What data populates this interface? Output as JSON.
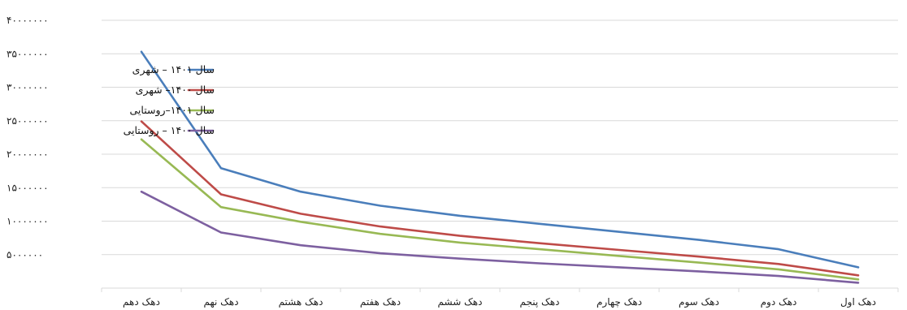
{
  "chart_data": {
    "type": "line",
    "categories": [
      "دهک اول",
      "دهک دوم",
      "دهک سوم",
      "دهک چهارم",
      "دهک پنجم",
      "دهک ششم",
      "دهک هفتم",
      "دهک هشتم",
      "دهک نهم",
      "دهک دهم"
    ],
    "series": [
      {
        "name": "سال ۱۴۰۱ – شهری",
        "color": "#4a7ebb",
        "values": [
          3100000,
          5800000,
          7200000,
          8400000,
          9600000,
          10800000,
          12300000,
          14400000,
          17900000,
          35300000
        ]
      },
      {
        "name": "سال ۱۴۰۰– شهری",
        "color": "#be4b48",
        "values": [
          1900000,
          3600000,
          4700000,
          5700000,
          6700000,
          7800000,
          9200000,
          11100000,
          14000000,
          24900000
        ]
      },
      {
        "name": "سال ۱۴۰۱–روستایی",
        "color": "#98b954",
        "values": [
          1300000,
          2800000,
          3800000,
          4800000,
          5800000,
          6800000,
          8100000,
          9900000,
          12100000,
          22200000
        ]
      },
      {
        "name": "سال ۱۴۰۰ – روستایی",
        "color": "#7d60a0",
        "values": [
          800000,
          1800000,
          2500000,
          3100000,
          3700000,
          4400000,
          5200000,
          6400000,
          8300000,
          14400000
        ]
      }
    ],
    "ylim": [
      0,
      40000000
    ],
    "yticks": [
      {
        "value": 5000000,
        "label": "۵۰۰۰۰۰۰"
      },
      {
        "value": 10000000,
        "label": "۱۰۰۰۰۰۰۰"
      },
      {
        "value": 15000000,
        "label": "۱۵۰۰۰۰۰۰"
      },
      {
        "value": 20000000,
        "label": "۲۰۰۰۰۰۰۰"
      },
      {
        "value": 25000000,
        "label": "۲۵۰۰۰۰۰۰"
      },
      {
        "value": 30000000,
        "label": "۳۰۰۰۰۰۰۰"
      },
      {
        "value": 35000000,
        "label": "۳۵۰۰۰۰۰۰"
      },
      {
        "value": 40000000,
        "label": "۴۰۰۰۰۰۰۰"
      }
    ],
    "grid": true,
    "legend": "upper-left inside plot area",
    "title": "",
    "xlabel": "",
    "ylabel": ""
  }
}
